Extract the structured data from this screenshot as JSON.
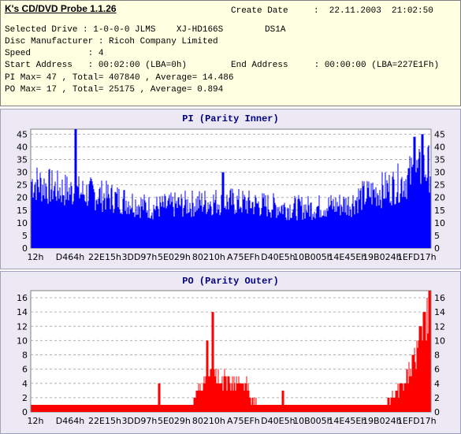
{
  "app_title": "K's CD/DVD Probe 1.1.26",
  "create_date_label": "Create Date",
  "create_date_value": ":  22.11.2003  21:02:50",
  "selected_drive": "Selected Drive : 1-0-0-0 JLMS    XJ-HD166S        DS1A",
  "disc_manufacturer": "Disc Manufacturer : Ricoh Company Limited",
  "speed": "Speed           : 4",
  "start_address": "Start Address   : 00:02:00 (LBA=0h)",
  "end_address": "End Address     : 00:00:00 (LBA=227E1Fh)",
  "pi_stats": "PI Max= 47 , Total= 407840 , Average= 14.486",
  "po_stats": "PO Max= 17 , Total= 25175 , Average= 0.894",
  "chart_data": [
    {
      "type": "bar",
      "title": "PI (Parity Inner)",
      "color": "#0000ff",
      "ylim": [
        0,
        47
      ],
      "yticks": [
        0,
        5,
        10,
        15,
        20,
        25,
        30,
        35,
        40,
        45
      ],
      "xticks": [
        "12h",
        "D464h",
        "22E15h",
        "3DD97h",
        "5E029h",
        "80210h",
        "A75EFh",
        "D40E5h",
        "10B005h",
        "14E45Eh",
        "19B024h",
        "1EFD17h"
      ],
      "grid": true,
      "envelope": [
        [
          0,
          33
        ],
        [
          0.05,
          30
        ],
        [
          0.1,
          28
        ],
        [
          0.15,
          27
        ],
        [
          0.2,
          25
        ],
        [
          0.25,
          23
        ],
        [
          0.28,
          21
        ],
        [
          0.3,
          20
        ],
        [
          0.35,
          21
        ],
        [
          0.4,
          22
        ],
        [
          0.45,
          23
        ],
        [
          0.5,
          23
        ],
        [
          0.55,
          22
        ],
        [
          0.6,
          21
        ],
        [
          0.65,
          20
        ],
        [
          0.7,
          20
        ],
        [
          0.75,
          21
        ],
        [
          0.8,
          22
        ],
        [
          0.82,
          25
        ],
        [
          0.85,
          27
        ],
        [
          0.9,
          30
        ],
        [
          0.93,
          33
        ],
        [
          0.96,
          37
        ],
        [
          1,
          40
        ]
      ],
      "spikes": [
        [
          0.11,
          47
        ],
        [
          0.98,
          45
        ],
        [
          0.96,
          44
        ],
        [
          0.48,
          30
        ]
      ]
    },
    {
      "type": "bar",
      "title": "PO (Parity Outer)",
      "color": "#ff0000",
      "ylim": [
        0,
        17
      ],
      "yticks": [
        0,
        2,
        4,
        6,
        8,
        10,
        12,
        14,
        16
      ],
      "xticks": [
        "12h",
        "D464h",
        "22E15h",
        "3DD97h",
        "5E029h",
        "80210h",
        "A75EFh",
        "D40E5h",
        "10B005h",
        "14E45Eh",
        "19B024h",
        "1EFD17h"
      ],
      "grid": true,
      "envelope": [
        [
          0,
          1
        ],
        [
          0.3,
          1
        ],
        [
          0.4,
          1
        ],
        [
          0.41,
          2
        ],
        [
          0.42,
          4
        ],
        [
          0.44,
          5
        ],
        [
          0.48,
          5
        ],
        [
          0.52,
          5
        ],
        [
          0.54,
          4
        ],
        [
          0.55,
          2
        ],
        [
          0.57,
          1
        ],
        [
          0.88,
          1
        ],
        [
          0.9,
          2
        ],
        [
          0.92,
          3
        ],
        [
          0.94,
          5
        ],
        [
          0.96,
          8
        ],
        [
          0.98,
          12
        ],
        [
          1,
          15
        ]
      ],
      "spikes": [
        [
          0.455,
          14
        ],
        [
          0.44,
          10
        ],
        [
          0.998,
          17
        ],
        [
          0.985,
          14
        ],
        [
          0.975,
          12
        ],
        [
          0.63,
          3
        ],
        [
          0.32,
          4
        ]
      ]
    }
  ]
}
